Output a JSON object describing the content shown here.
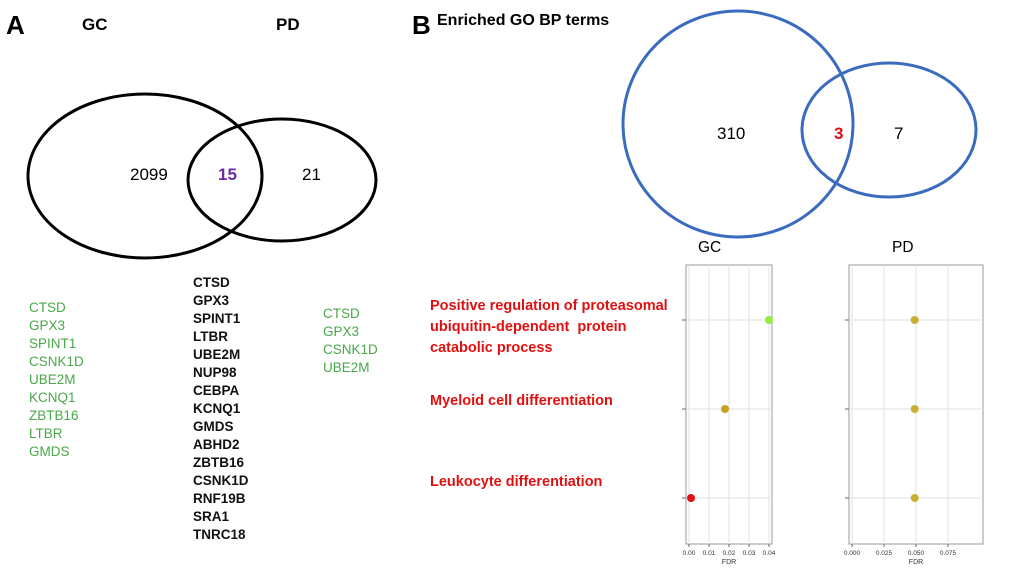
{
  "panelA": {
    "letter": "A",
    "label_gc": "GC",
    "label_pd": "PD",
    "count_gc_only": "2099",
    "count_overlap": "15",
    "count_pd_only": "21",
    "genes_gc": [
      "CTSD",
      "GPX3",
      "SPINT1",
      "CSNK1D",
      "UBE2M",
      "KCNQ1",
      "ZBTB16",
      "LTBR",
      "GMDS"
    ],
    "genes_overlap": [
      "CTSD",
      "GPX3",
      "SPINT1",
      "LTBR",
      "UBE2M",
      "NUP98",
      "CEBPA",
      "KCNQ1",
      "GMDS",
      "ABHD2",
      "ZBTB16",
      "CSNK1D",
      "RNF19B",
      "SRA1",
      "TNRC18"
    ],
    "genes_pd": [
      "CTSD",
      "GPX3",
      "CSNK1D",
      "UBE2M"
    ],
    "colors": {
      "list_green": "#4aa84a",
      "overlap_number": "#6a2aa8",
      "circle": "#000000"
    }
  },
  "panelB": {
    "letter": "B",
    "title": "Enriched GO BP terms",
    "count_gc_only": "310",
    "count_overlap": "3",
    "count_pd_only": "7",
    "colors": {
      "circle": "#3a6bbf",
      "overlap_number": "#e01010",
      "term": "#e01010"
    },
    "terms": [
      {
        "lines": [
          "Positive regulation of proteasomal",
          "ubiquitin-dependent  protein",
          "catabolic process"
        ]
      },
      {
        "lines": [
          "Myeloid cell differentiation"
        ]
      },
      {
        "lines": [
          "Leukocyte differentiation"
        ]
      }
    ]
  },
  "chart_data": [
    {
      "type": "scatter",
      "title": "GC",
      "xlabel": "FDR",
      "xlim": [
        0,
        0.04
      ],
      "x_ticks": [
        "0.00",
        "0.01",
        "0.02",
        "0.03",
        "0.04"
      ],
      "x_tick_values": [
        0,
        0.01,
        0.02,
        0.03,
        0.04
      ],
      "grid": true,
      "points": [
        {
          "term_index": 0,
          "x": 0.04,
          "color": "#90ee40"
        },
        {
          "term_index": 1,
          "x": 0.018,
          "color": "#c8a020"
        },
        {
          "term_index": 2,
          "x": 0.001,
          "color": "#e01010"
        }
      ]
    },
    {
      "type": "scatter",
      "title": "PD",
      "xlabel": "FDR",
      "xlim": [
        0,
        0.1
      ],
      "x_ticks": [
        "0.000",
        "0.025",
        "0.050",
        "0.075"
      ],
      "x_tick_values": [
        0,
        0.025,
        0.05,
        0.075
      ],
      "grid": true,
      "points": [
        {
          "term_index": 0,
          "x": 0.049,
          "color": "#c8b030"
        },
        {
          "term_index": 1,
          "x": 0.049,
          "color": "#c8b030"
        },
        {
          "term_index": 2,
          "x": 0.049,
          "color": "#c8b030"
        }
      ]
    }
  ]
}
